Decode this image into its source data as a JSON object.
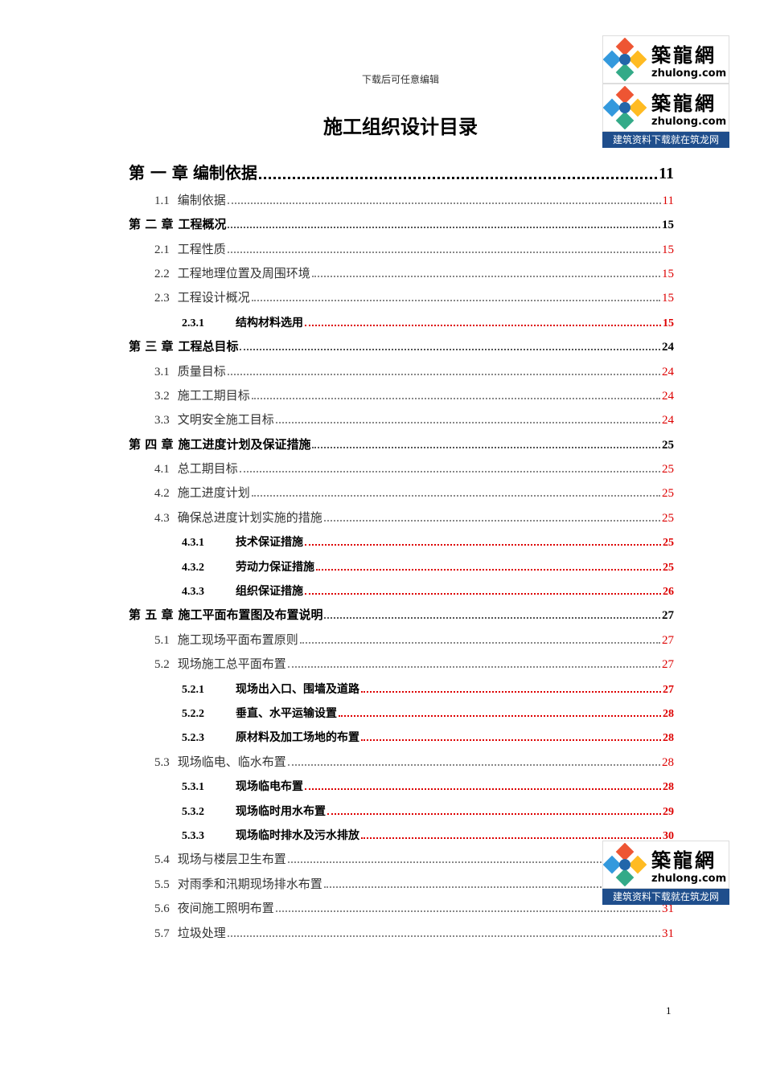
{
  "header": {
    "note": "下载后可任意编辑",
    "title": "施工组织设计目录"
  },
  "logo": {
    "name": "築龍網",
    "site": "zhulong.com",
    "slogan": "建筑资料下载就在筑龙网"
  },
  "toc": [
    {
      "level": 1,
      "number": "第 一 章",
      "text": "编制依据",
      "page": "11"
    },
    {
      "level": 2,
      "number": "1.1",
      "text": "编制依据",
      "page": "11"
    },
    {
      "level": 1,
      "number": "第 二 章",
      "text": "工程概况",
      "page": "15"
    },
    {
      "level": 2,
      "number": "2.1",
      "text": "工程性质",
      "page": "15"
    },
    {
      "level": 2,
      "number": "2.2",
      "text": "工程地理位置及周围环境",
      "page": "15"
    },
    {
      "level": 2,
      "number": "2.3",
      "text": "工程设计概况",
      "page": "15"
    },
    {
      "level": 3,
      "number": "2.3.1",
      "text": "结构材料选用",
      "page": "15"
    },
    {
      "level": 1,
      "number": "第 三 章",
      "text": "工程总目标",
      "page": "24"
    },
    {
      "level": 2,
      "number": "3.1",
      "text": "质量目标",
      "page": "24"
    },
    {
      "level": 2,
      "number": "3.2",
      "text": "施工工期目标",
      "page": "24"
    },
    {
      "level": 2,
      "number": "3.3",
      "text": "文明安全施工目标",
      "page": "24"
    },
    {
      "level": 1,
      "number": "第 四 章",
      "text": "施工进度计划及保证措施",
      "page": "25"
    },
    {
      "level": 2,
      "number": "4.1",
      "text": "总工期目标",
      "page": "25"
    },
    {
      "level": 2,
      "number": "4.2",
      "text": "施工进度计划",
      "page": "25"
    },
    {
      "level": 2,
      "number": "4.3",
      "text": "确保总进度计划实施的措施",
      "page": "25"
    },
    {
      "level": 3,
      "number": "4.3.1",
      "text": "技术保证措施",
      "page": "25"
    },
    {
      "level": 3,
      "number": "4.3.2",
      "text": "劳动力保证措施",
      "page": "25"
    },
    {
      "level": 3,
      "number": "4.3.3",
      "text": "组织保证措施",
      "page": "26"
    },
    {
      "level": 1,
      "number": "第 五 章",
      "text": "施工平面布置图及布置说明",
      "page": "27"
    },
    {
      "level": 2,
      "number": "5.1",
      "text": "施工现场平面布置原则",
      "page": "27"
    },
    {
      "level": 2,
      "number": "5.2",
      "text": "现场施工总平面布置",
      "page": "27"
    },
    {
      "level": 3,
      "number": "5.2.1",
      "text": "现场出入口、围墙及道路",
      "page": "27"
    },
    {
      "level": 3,
      "number": "5.2.2",
      "text": "垂直、水平运输设置",
      "page": "28"
    },
    {
      "level": 3,
      "number": "5.2.3",
      "text": "原材料及加工场地的布置",
      "page": "28"
    },
    {
      "level": 2,
      "number": "5.3",
      "text": "现场临电、临水布置",
      "page": "28"
    },
    {
      "level": 3,
      "number": "5.3.1",
      "text": "现场临电布置",
      "page": "28"
    },
    {
      "level": 3,
      "number": "5.3.2",
      "text": "现场临时用水布置",
      "page": "29"
    },
    {
      "level": 3,
      "number": "5.3.3",
      "text": "现场临时排水及污水排放",
      "page": "30"
    },
    {
      "level": 2,
      "number": "5.4",
      "text": "现场与楼层卫生布置"
    },
    {
      "level": 2,
      "number": "5.5",
      "text": "对雨季和汛期现场排水布置"
    },
    {
      "level": 2,
      "number": "5.6",
      "text": "夜间施工照明布置",
      "page": "31"
    },
    {
      "level": 2,
      "number": "5.7",
      "text": "垃圾处理",
      "page": "31"
    }
  ],
  "footer": {
    "page_number": "1"
  }
}
